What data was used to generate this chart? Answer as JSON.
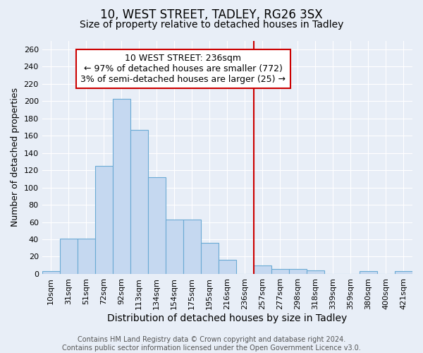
{
  "title": "10, WEST STREET, TADLEY, RG26 3SX",
  "subtitle": "Size of property relative to detached houses in Tadley",
  "xlabel": "Distribution of detached houses by size in Tadley",
  "ylabel": "Number of detached properties",
  "categories": [
    "10sqm",
    "31sqm",
    "51sqm",
    "72sqm",
    "92sqm",
    "113sqm",
    "134sqm",
    "154sqm",
    "175sqm",
    "195sqm",
    "216sqm",
    "236sqm",
    "257sqm",
    "277sqm",
    "298sqm",
    "318sqm",
    "339sqm",
    "359sqm",
    "380sqm",
    "400sqm",
    "421sqm"
  ],
  "values": [
    3,
    41,
    41,
    125,
    203,
    167,
    112,
    63,
    63,
    36,
    16,
    0,
    10,
    6,
    6,
    4,
    0,
    0,
    3,
    0,
    3
  ],
  "bar_color": "#c5d8f0",
  "bar_edge_color": "#6aaad4",
  "vline_color": "#cc0000",
  "annotation_text": "10 WEST STREET: 236sqm\n← 97% of detached houses are smaller (772)\n3% of semi-detached houses are larger (25) →",
  "annotation_box_color": "#cc0000",
  "background_color": "#e8eef7",
  "ylim": [
    0,
    270
  ],
  "yticks": [
    0,
    20,
    40,
    60,
    80,
    100,
    120,
    140,
    160,
    180,
    200,
    220,
    240,
    260
  ],
  "footer_text": "Contains HM Land Registry data © Crown copyright and database right 2024.\nContains public sector information licensed under the Open Government Licence v3.0.",
  "title_fontsize": 12,
  "subtitle_fontsize": 10,
  "xlabel_fontsize": 10,
  "ylabel_fontsize": 9,
  "tick_fontsize": 8,
  "annotation_fontsize": 9,
  "footer_fontsize": 7
}
